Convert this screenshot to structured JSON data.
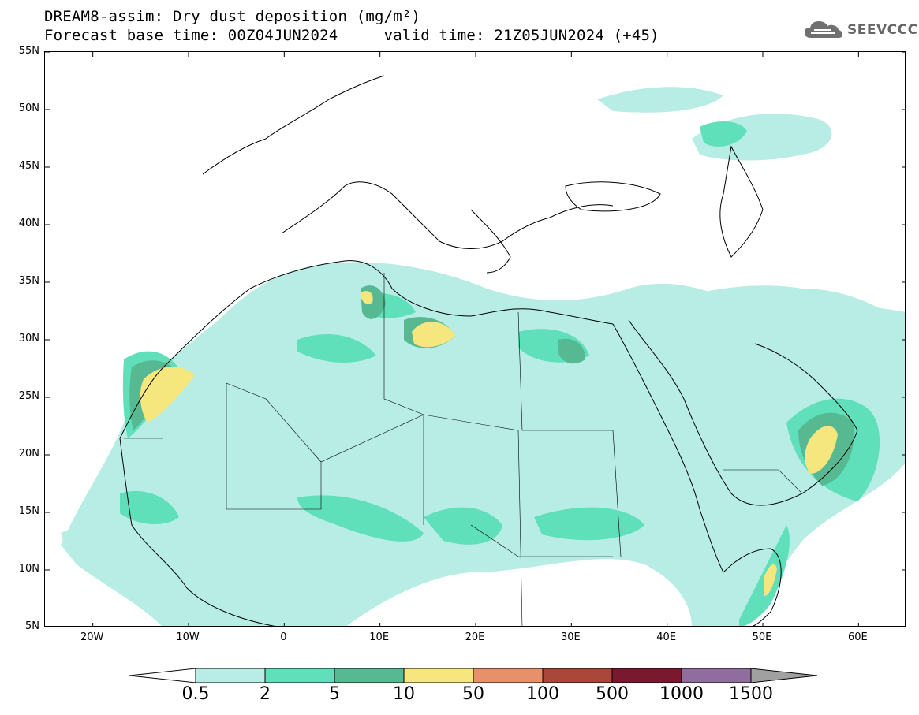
{
  "header": {
    "title_line1": "DREAM8-assim: Dry dust deposition (mg/m²)",
    "title_line2": "Forecast base time: 00Z04JUN2024     valid time: 21Z05JUN2024 (+45)",
    "logo_text": "SEEVCCC"
  },
  "map": {
    "lon_range": [
      -25,
      65
    ],
    "lat_range": [
      5,
      55
    ],
    "lat_ticks": [
      "55N",
      "50N",
      "45N",
      "40N",
      "35N",
      "30N",
      "25N",
      "20N",
      "15N",
      "10N",
      "5N"
    ],
    "lon_ticks": [
      "20W",
      "10W",
      "0",
      "10E",
      "20E",
      "30E",
      "40E",
      "50E",
      "60E"
    ],
    "dust_regions": [
      {
        "level": 0,
        "area": "Sahara and Sahel widespread deposition"
      },
      {
        "level": 1,
        "area": "Sahel belt, Mauritania coast, Libya, Egypt"
      },
      {
        "level": 2,
        "area": "Western Sahara coast, Tunisia, Libya coast, Oman"
      },
      {
        "level": 3,
        "area": "Western Sahara coast, Gulf of Sidra, Oman, Somalia"
      }
    ]
  },
  "legend": {
    "labels": [
      "0.5",
      "2",
      "5",
      "10",
      "50",
      "100",
      "500",
      "1000",
      "1500"
    ],
    "colors": [
      "#b8ede6",
      "#5fe0bb",
      "#56b991",
      "#f5e67d",
      "#e8906a",
      "#a9473b",
      "#7a1830",
      "#8f6d9e"
    ],
    "end_colors": {
      "low": "#ffffff",
      "high": "#a0a0a0"
    }
  }
}
